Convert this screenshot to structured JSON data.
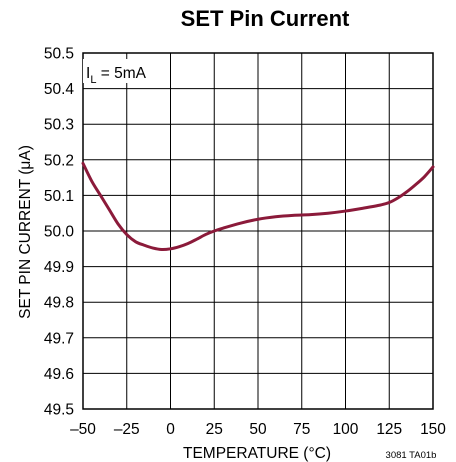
{
  "chart_data": {
    "type": "line",
    "title": "SET Pin Current",
    "xlabel": "TEMPERATURE (°C)",
    "ylabel": "SET PIN CURRENT (μA)",
    "xlim": [
      -50,
      150
    ],
    "ylim": [
      49.5,
      50.5
    ],
    "x_ticks": [
      -50,
      -25,
      0,
      25,
      50,
      75,
      100,
      125,
      150
    ],
    "x_tick_labels": [
      "–50",
      "–25",
      "0",
      "25",
      "50",
      "75",
      "100",
      "125",
      "150"
    ],
    "y_ticks": [
      49.5,
      49.6,
      49.7,
      49.8,
      49.9,
      50.0,
      50.1,
      50.2,
      50.3,
      50.4,
      50.5
    ],
    "y_tick_labels": [
      "49.5",
      "49.6",
      "49.7",
      "49.8",
      "49.9",
      "50.0",
      "50.1",
      "50.2",
      "50.3",
      "50.4",
      "50.5"
    ],
    "grid": true,
    "annotation": {
      "main": "I",
      "subscript": "L",
      "rest": " = 5mA"
    },
    "footnote": "3081 TA01b",
    "line_color": "#8b1a3a",
    "series": [
      {
        "x": [
          -50,
          -45,
          -40,
          -35,
          -30,
          -25,
          -20,
          -15,
          -10,
          -5,
          0,
          5,
          10,
          15,
          20,
          25,
          30,
          40,
          50,
          60,
          70,
          80,
          90,
          100,
          110,
          120,
          125,
          130,
          135,
          140,
          145,
          150
        ],
        "values": [
          50.19,
          50.14,
          50.1,
          50.06,
          50.02,
          49.99,
          49.97,
          49.96,
          49.952,
          49.948,
          49.95,
          49.956,
          49.965,
          49.977,
          49.99,
          50.0,
          50.008,
          50.022,
          50.033,
          50.04,
          50.044,
          50.046,
          50.05,
          50.056,
          50.064,
          50.073,
          50.08,
          50.093,
          50.11,
          50.13,
          50.152,
          50.18
        ]
      }
    ]
  }
}
